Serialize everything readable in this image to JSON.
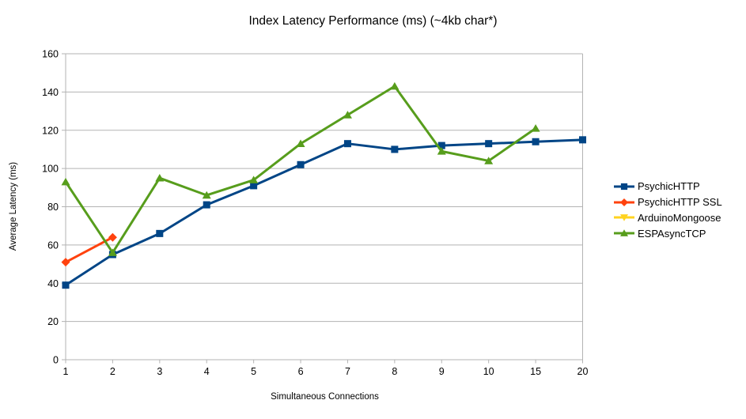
{
  "chart_data": {
    "type": "line",
    "title": "Index Latency Performance (ms) (~4kb char*)",
    "xlabel": "Simultaneous Connections",
    "ylabel": "Average Latency (ms)",
    "categories": [
      "1",
      "2",
      "3",
      "4",
      "5",
      "6",
      "7",
      "8",
      "9",
      "10",
      "15",
      "20"
    ],
    "ylim": [
      0,
      160
    ],
    "yticks": [
      0,
      20,
      40,
      60,
      80,
      100,
      120,
      140,
      160
    ],
    "grid": true,
    "legend_position": "right",
    "axis_color": "#b3b3b3",
    "text_color": "#000000",
    "background_color": "#ffffff",
    "series": [
      {
        "name": "PsychicHTTP",
        "color": "#004586",
        "marker": "square",
        "values": [
          39,
          55,
          66,
          81,
          91,
          102,
          113,
          110,
          112,
          113,
          114,
          115
        ]
      },
      {
        "name": "PsychicHTTP SSL",
        "color": "#FF420E",
        "marker": "diamond",
        "values": [
          51,
          64,
          null,
          null,
          null,
          null,
          null,
          null,
          null,
          null,
          null,
          null
        ]
      },
      {
        "name": "ArduinoMongoose",
        "color": "#FFD320",
        "marker": "triangle-down",
        "values": [
          null,
          null,
          null,
          null,
          null,
          null,
          null,
          null,
          null,
          null,
          null,
          null
        ]
      },
      {
        "name": "ESPAsyncTCP",
        "color": "#579D1C",
        "marker": "triangle-up",
        "values": [
          93,
          56,
          95,
          86,
          94,
          113,
          128,
          143,
          109,
          104,
          121,
          null
        ]
      }
    ]
  }
}
